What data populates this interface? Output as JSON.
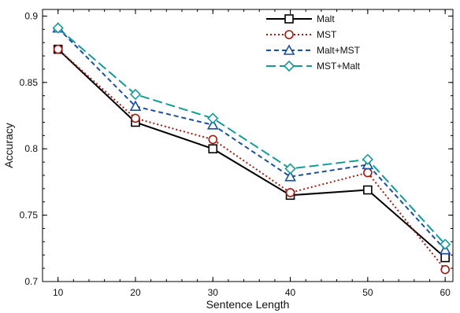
{
  "chart_data": {
    "type": "line",
    "title": "",
    "xlabel": "Sentence Length",
    "ylabel": "Accuracy",
    "x": [
      10,
      20,
      30,
      40,
      50,
      60
    ],
    "x_ticks": [
      "10",
      "20",
      "30",
      "40",
      "50",
      "60"
    ],
    "xlim": [
      8,
      61
    ],
    "ylim": [
      0.7,
      0.905
    ],
    "y_ticks": [
      0.7,
      0.75,
      0.8,
      0.85,
      0.9
    ],
    "y_tick_labels": [
      "0.7",
      "0.75",
      "0.8",
      "0.85",
      "0.9"
    ],
    "grid": false,
    "legend_position": "top-right",
    "series": [
      {
        "name": "Malt",
        "values": [
          0.875,
          0.82,
          0.8,
          0.765,
          0.769,
          0.718
        ],
        "color": "#000000",
        "dash": "solid",
        "marker": "square"
      },
      {
        "name": "MST",
        "values": [
          0.875,
          0.823,
          0.807,
          0.767,
          0.782,
          0.709
        ],
        "color": "#a11a0f",
        "dash": "dotted",
        "marker": "circle"
      },
      {
        "name": "Malt+MST",
        "values": [
          0.891,
          0.832,
          0.818,
          0.779,
          0.788,
          0.724
        ],
        "color": "#1b4f9c",
        "dash": "dashed",
        "marker": "triangle"
      },
      {
        "name": "MST+Malt",
        "values": [
          0.891,
          0.841,
          0.823,
          0.785,
          0.792,
          0.728
        ],
        "color": "#159a97",
        "dash": "longdash",
        "marker": "diamond"
      }
    ]
  }
}
